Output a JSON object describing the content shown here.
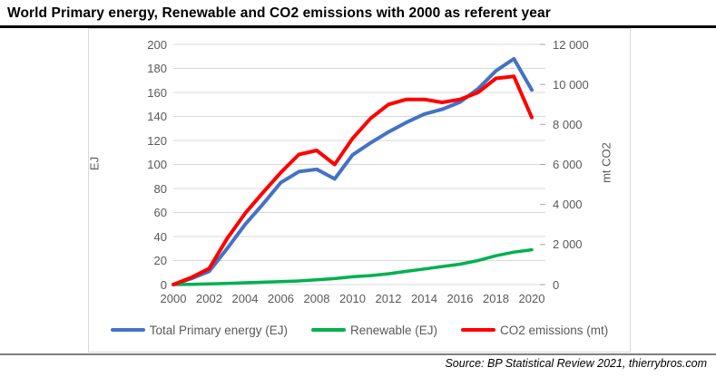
{
  "header": {
    "title": "World Primary energy, Renewable and CO2 emissions with 2000 as referent year"
  },
  "footer": {
    "source": "Source: BP Statistical Review 2021, thierrybros.com"
  },
  "colors": {
    "primary_energy": "#4472C4",
    "renewable": "#00B050",
    "co2": "#FF0000",
    "gridline": "#D9D9D9",
    "axis_text": "#595959",
    "tick_mark": "#A6A6A6"
  },
  "chart_data": {
    "type": "line",
    "title": "World Primary energy, Renewable and CO2 emissions with 2000 as referent year",
    "grid": true,
    "x": [
      2000,
      2001,
      2002,
      2003,
      2004,
      2005,
      2006,
      2007,
      2008,
      2009,
      2010,
      2011,
      2012,
      2013,
      2014,
      2015,
      2016,
      2017,
      2018,
      2019,
      2020
    ],
    "x_tick_labels": [
      "2000",
      "2002",
      "2004",
      "2006",
      "2008",
      "2010",
      "2012",
      "2014",
      "2016",
      "2018",
      "2020"
    ],
    "left_axis": {
      "title": "EJ",
      "min": 0,
      "max": 200,
      "step": 20,
      "tick_labels": [
        "0",
        "20",
        "40",
        "60",
        "80",
        "100",
        "120",
        "140",
        "160",
        "180",
        "200"
      ]
    },
    "right_axis": {
      "title": "mt CO2",
      "min": 0,
      "max": 12000,
      "step": 2000,
      "tick_labels": [
        "0",
        "2 000",
        "4 000",
        "6 000",
        "8 000",
        "10 000",
        "12 000"
      ]
    },
    "legend": {
      "position": "bottom"
    },
    "series": [
      {
        "id": "total-primary-energy",
        "name": "Total Primary energy (EJ)",
        "axis": "left",
        "color": "#4472C4",
        "width": 4,
        "values": [
          0,
          5,
          11,
          30,
          50,
          67,
          85,
          94,
          96,
          88,
          108,
          118,
          127,
          135,
          142,
          146,
          152,
          163,
          178,
          188,
          162
        ]
      },
      {
        "id": "renewable",
        "name": "Renewable (EJ)",
        "axis": "left",
        "color": "#00B050",
        "width": 3.5,
        "values": [
          0,
          0.2,
          0.5,
          1,
          1.5,
          2,
          2.5,
          3,
          4,
          5,
          6.5,
          7.5,
          9,
          11,
          13,
          15,
          17,
          20,
          24,
          27,
          29
        ]
      },
      {
        "id": "co2-emissions",
        "name": "CO2 emissions (mt)",
        "axis": "right",
        "color": "#FF0000",
        "width": 4,
        "values": [
          0,
          350,
          800,
          2300,
          3550,
          4600,
          5600,
          6500,
          6700,
          6000,
          7300,
          8300,
          9000,
          9250,
          9250,
          9100,
          9250,
          9600,
          10300,
          10400,
          8350
        ]
      }
    ]
  }
}
